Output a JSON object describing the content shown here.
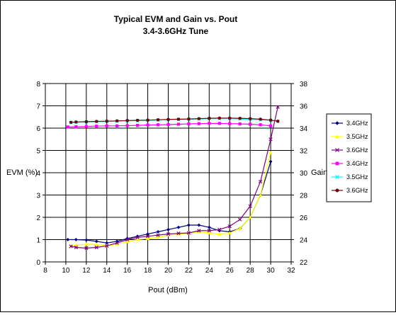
{
  "chart_data": {
    "type": "line",
    "title": "Typical EVM and Gain vs. Pout",
    "subtitle": "3.4-3.6GHz Tune",
    "xlabel": "Pout (dBm)",
    "ylabel": "EVM (%)",
    "y2label": "Gain",
    "xlim": [
      8,
      32
    ],
    "ylim": [
      0,
      8
    ],
    "y2lim": [
      22,
      38
    ],
    "xticks": [
      "8",
      "10",
      "12",
      "14",
      "16",
      "18",
      "20",
      "22",
      "24",
      "26",
      "28",
      "30",
      "32"
    ],
    "yticks": [
      "0",
      "1",
      "2",
      "3",
      "4",
      "5",
      "6",
      "7",
      "8"
    ],
    "y2ticks": [
      "22",
      "24",
      "26",
      "28",
      "30",
      "32",
      "34",
      "36",
      "38"
    ],
    "grid": true,
    "legend_position": "right",
    "series": [
      {
        "name": "3.4GHz",
        "axis": "left",
        "color": "#000080",
        "marker": "diamond",
        "x": [
          10.2,
          11.0,
          12.0,
          13.0,
          14.0,
          15.0,
          16.0,
          17.0,
          18.0,
          19.0,
          20.0,
          21.0,
          22.0,
          23.0,
          24.0,
          25.0,
          26.0,
          27.0,
          28.0,
          29.0,
          30.0
        ],
        "values": [
          1.0,
          1.0,
          0.98,
          0.92,
          0.85,
          0.92,
          1.05,
          1.15,
          1.25,
          1.35,
          1.45,
          1.55,
          1.65,
          1.65,
          1.55,
          1.4,
          1.35,
          1.5,
          2.0,
          3.0,
          4.5
        ]
      },
      {
        "name": "3.5GHz",
        "axis": "left",
        "color": "#ffff00",
        "marker": "triangle",
        "x": [
          10.5,
          11.0,
          12.0,
          13.0,
          14.0,
          15.0,
          16.0,
          17.0,
          18.0,
          19.0,
          20.0,
          21.0,
          22.0,
          23.0,
          24.0,
          25.0,
          26.0,
          27.0,
          28.0,
          29.0,
          30.0
        ],
        "values": [
          0.72,
          0.75,
          0.8,
          0.78,
          0.72,
          0.8,
          0.9,
          1.0,
          1.05,
          1.1,
          1.2,
          1.25,
          1.3,
          1.35,
          1.3,
          1.25,
          1.3,
          1.5,
          2.0,
          3.0,
          4.9
        ]
      },
      {
        "name": "3.6GHz",
        "axis": "left",
        "color": "#800080",
        "marker": "x",
        "x": [
          10.5,
          11.0,
          12.0,
          13.0,
          14.0,
          15.0,
          16.0,
          17.0,
          18.0,
          19.0,
          20.0,
          21.0,
          22.0,
          23.0,
          24.0,
          25.0,
          26.0,
          27.0,
          28.0,
          29.0,
          30.0,
          30.7
        ],
        "values": [
          0.7,
          0.65,
          0.62,
          0.65,
          0.72,
          0.85,
          1.0,
          1.1,
          1.15,
          1.2,
          1.25,
          1.28,
          1.3,
          1.4,
          1.4,
          1.45,
          1.6,
          1.9,
          2.5,
          3.6,
          5.5,
          6.95
        ]
      },
      {
        "name": "3.4GHz",
        "axis": "right",
        "color": "#ff00ff",
        "marker": "square",
        "x": [
          10.2,
          11.0,
          12.0,
          13.0,
          14.0,
          15.0,
          16.0,
          17.0,
          18.0,
          19.0,
          20.0,
          21.0,
          22.0,
          23.0,
          24.0,
          25.0,
          26.0,
          27.0,
          28.0,
          29.0,
          30.0
        ],
        "values": [
          34.1,
          34.12,
          34.15,
          34.18,
          34.2,
          34.2,
          34.22,
          34.25,
          34.28,
          34.3,
          34.32,
          34.35,
          34.38,
          34.4,
          34.42,
          34.42,
          34.4,
          34.38,
          34.35,
          34.3,
          34.2
        ]
      },
      {
        "name": "3.5GHz",
        "axis": "right",
        "color": "#00ffff",
        "marker": "x",
        "x": [
          10.5,
          11.0,
          12.0,
          13.0,
          14.0,
          15.0,
          16.0,
          17.0,
          18.0,
          19.0,
          20.0,
          21.0,
          22.0,
          23.0,
          24.0,
          25.0,
          26.0,
          27.0,
          28.0,
          29.0,
          30.0,
          30.7
        ],
        "values": [
          34.5,
          34.52,
          34.55,
          34.58,
          34.6,
          34.62,
          34.65,
          34.68,
          34.7,
          34.72,
          34.75,
          34.78,
          34.8,
          34.82,
          34.85,
          34.85,
          34.85,
          34.82,
          34.8,
          34.75,
          34.7,
          34.6
        ]
      },
      {
        "name": "3.6GHz",
        "axis": "right",
        "color": "#800000",
        "marker": "circle",
        "x": [
          10.5,
          11.0,
          12.0,
          13.0,
          14.0,
          15.0,
          16.0,
          17.0,
          18.0,
          19.0,
          20.0,
          21.0,
          22.0,
          23.0,
          24.0,
          25.0,
          26.0,
          27.0,
          28.0,
          29.0,
          30.0,
          30.7
        ],
        "values": [
          34.52,
          34.55,
          34.58,
          34.6,
          34.62,
          34.65,
          34.68,
          34.7,
          34.72,
          34.75,
          34.78,
          34.8,
          34.82,
          34.85,
          34.88,
          34.9,
          34.9,
          34.88,
          34.85,
          34.8,
          34.72,
          34.62
        ]
      }
    ]
  }
}
